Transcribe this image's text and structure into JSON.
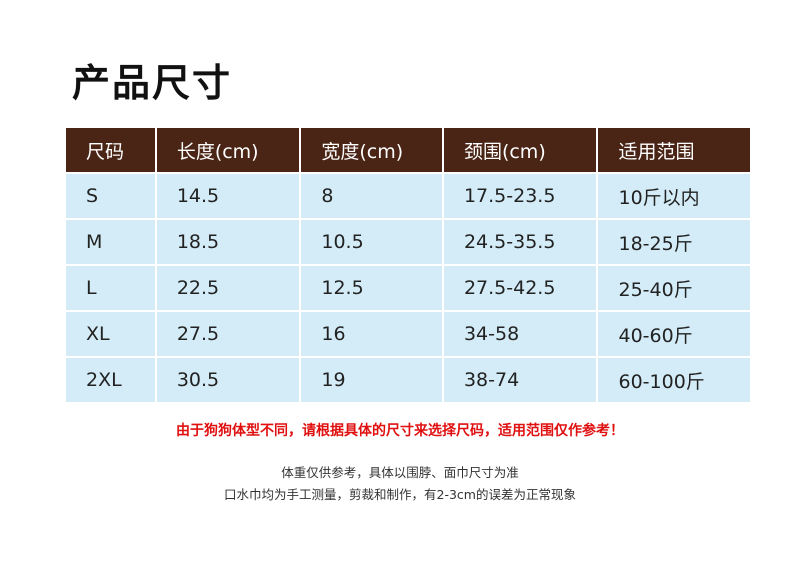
{
  "title": "产品尺寸",
  "table": {
    "headers": [
      "尺码",
      "长度(cm)",
      "宽度(cm)",
      "颈围(cm)",
      "适用范围"
    ],
    "rows": [
      [
        "S",
        "14.5",
        "8",
        "17.5-23.5",
        "10斤以内"
      ],
      [
        "M",
        "18.5",
        "10.5",
        "24.5-35.5",
        "18-25斤"
      ],
      [
        "L",
        "22.5",
        "12.5",
        "27.5-42.5",
        "25-40斤"
      ],
      [
        "XL",
        "27.5",
        "16",
        "34-58",
        "40-60斤"
      ],
      [
        "2XL",
        "30.5",
        "19",
        "38-74",
        "60-100斤"
      ]
    ]
  },
  "warning": "由于狗狗体型不同，请根据具体的尺寸来选择尺码，适用范围仅作参考！",
  "notes": [
    "体重仅供参考，具体以围脖、面巾尺寸为准",
    "口水巾均为手工测量，剪裁和制作，有2-3cm的误差为正常现象"
  ],
  "colors": {
    "header": "#4a2414",
    "cell": "#d3ecf7",
    "warning": "#e01010"
  }
}
